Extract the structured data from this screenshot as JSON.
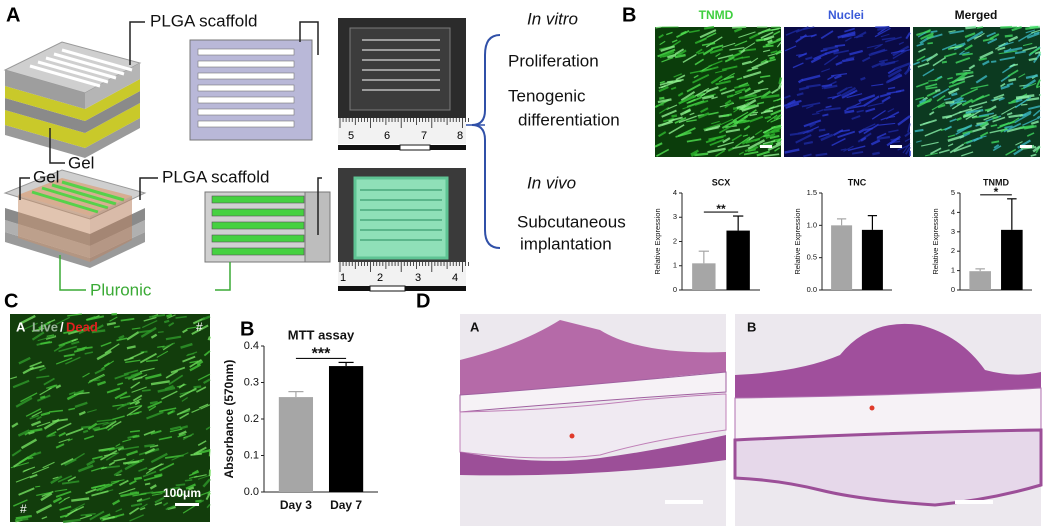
{
  "panel_labels": [
    "A",
    "B",
    "C",
    "D"
  ],
  "panel_a": {
    "scaffold_label_top": "PLGA scaffold",
    "gel_top": "Gel",
    "gel_bottom": "Gel",
    "scaffold_label_bottom": "PLGA scaffold",
    "pluronic": "Pluronic",
    "ruler_top": [
      "5",
      "6",
      "7",
      "8"
    ],
    "ruler_bottom": [
      "1",
      "2",
      "3",
      "4"
    ],
    "in_vitro": "In vitro",
    "proliferation": "Proliferation",
    "tenogenic": [
      "Tenogenic",
      "differentiation"
    ],
    "in_vivo": "In vivo",
    "implantation": [
      "Subcutaneous",
      "implantation"
    ]
  },
  "panel_b": {
    "channels": [
      "TNMD",
      "Nuclei",
      "Merged"
    ]
  },
  "panel_c": {
    "image_label": "A",
    "live_dead": [
      "Live",
      "/",
      "Dead"
    ],
    "markers": [
      "#",
      "#"
    ],
    "scale_bar": "100μm",
    "chart_label": "B"
  },
  "panel_d": {
    "image_labels": [
      "A",
      "B"
    ]
  },
  "chart_data": [
    {
      "type": "bar",
      "title": "SCX",
      "ylabel": "Relative Expression",
      "categories": [
        null,
        null
      ],
      "values": [
        1.1,
        2.45
      ],
      "errors": [
        0.5,
        0.6
      ],
      "colors": [
        "#a6a6a6",
        "#000000"
      ],
      "ylim": [
        0,
        4
      ],
      "yticks": [
        0,
        1,
        2,
        3,
        4
      ],
      "annotation": "**"
    },
    {
      "type": "bar",
      "title": "TNC",
      "ylabel": "Relative Expression",
      "categories": [
        null,
        null
      ],
      "values": [
        1.0,
        0.93
      ],
      "errors": [
        0.1,
        0.22
      ],
      "colors": [
        "#a6a6a6",
        "#000000"
      ],
      "ylim": [
        0,
        1.5
      ],
      "yticks": [
        {
          "value": 0,
          "label": "0.0"
        },
        0.5,
        {
          "value": 1,
          "label": "1.0"
        },
        1.5
      ]
    },
    {
      "type": "bar",
      "title": "TNMD",
      "ylabel": "Relative Expression",
      "categories": [
        null,
        null
      ],
      "values": [
        0.97,
        3.1
      ],
      "errors": [
        0.12,
        1.6
      ],
      "colors": [
        "#a6a6a6",
        "#000000"
      ],
      "ylim": [
        0,
        5
      ],
      "yticks": [
        0,
        1,
        2,
        3,
        4,
        5
      ],
      "annotation": "*"
    },
    {
      "type": "bar",
      "title": "MTT assay",
      "ylabel": "Absorbance (570nm)",
      "categories": [
        "Day 3",
        "Day 7"
      ],
      "values": [
        0.26,
        0.345
      ],
      "errors": [
        0.015,
        0.01
      ],
      "colors": [
        "#a6a6a6",
        "#000000"
      ],
      "ylim": [
        0,
        0.4
      ],
      "yticks": [
        {
          "value": 0,
          "label": "0.0"
        },
        0.1,
        0.2,
        0.3,
        0.4
      ],
      "annotation": "***"
    }
  ]
}
